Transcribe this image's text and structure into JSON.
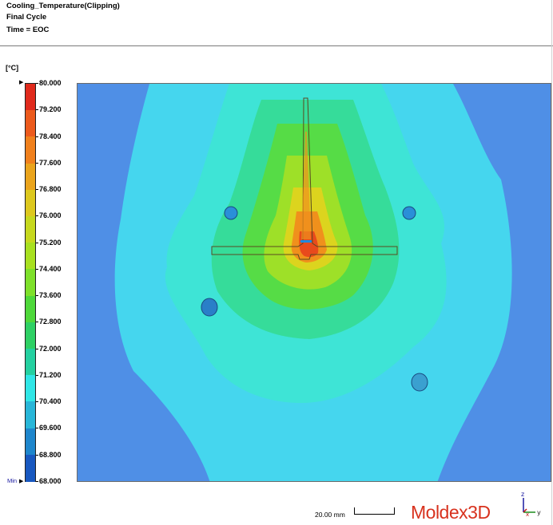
{
  "header": {
    "title": "Cooling_Temperature(Clipping)",
    "cycle": "Final Cycle",
    "time": "Time = EOC"
  },
  "legend": {
    "unit": "[°C]",
    "ticks": [
      "80.000",
      "79.200",
      "78.400",
      "77.600",
      "76.800",
      "76.000",
      "75.200",
      "74.400",
      "73.600",
      "72.800",
      "72.000",
      "71.200",
      "70.400",
      "69.600",
      "68.800",
      "68.000"
    ],
    "max_value": 80.0,
    "min_value": 68.0,
    "min_label": "Min",
    "colors": [
      "#e02a1c",
      "#ec5a1c",
      "#f0801c",
      "#eaa41c",
      "#ddc81e",
      "#c6d81e",
      "#a8e020",
      "#7ee02a",
      "#4ed83a",
      "#2ed064",
      "#24d0a0",
      "#30e6e6",
      "#28b6d8",
      "#1e86cc",
      "#1858c0",
      "#1428b4"
    ]
  },
  "plot": {
    "background_color": "#4f8fe6",
    "gate_color": "#1e8ae0",
    "cooling_channels": [
      "channel-upper-left",
      "channel-upper-right",
      "channel-lower-left",
      "channel-lower-right"
    ]
  },
  "footer": {
    "scale_label": "20.00 mm",
    "brand_a": "Moldex",
    "brand_b": "3D",
    "axis_z": "z",
    "axis_y": "y",
    "axis_x": "x"
  }
}
